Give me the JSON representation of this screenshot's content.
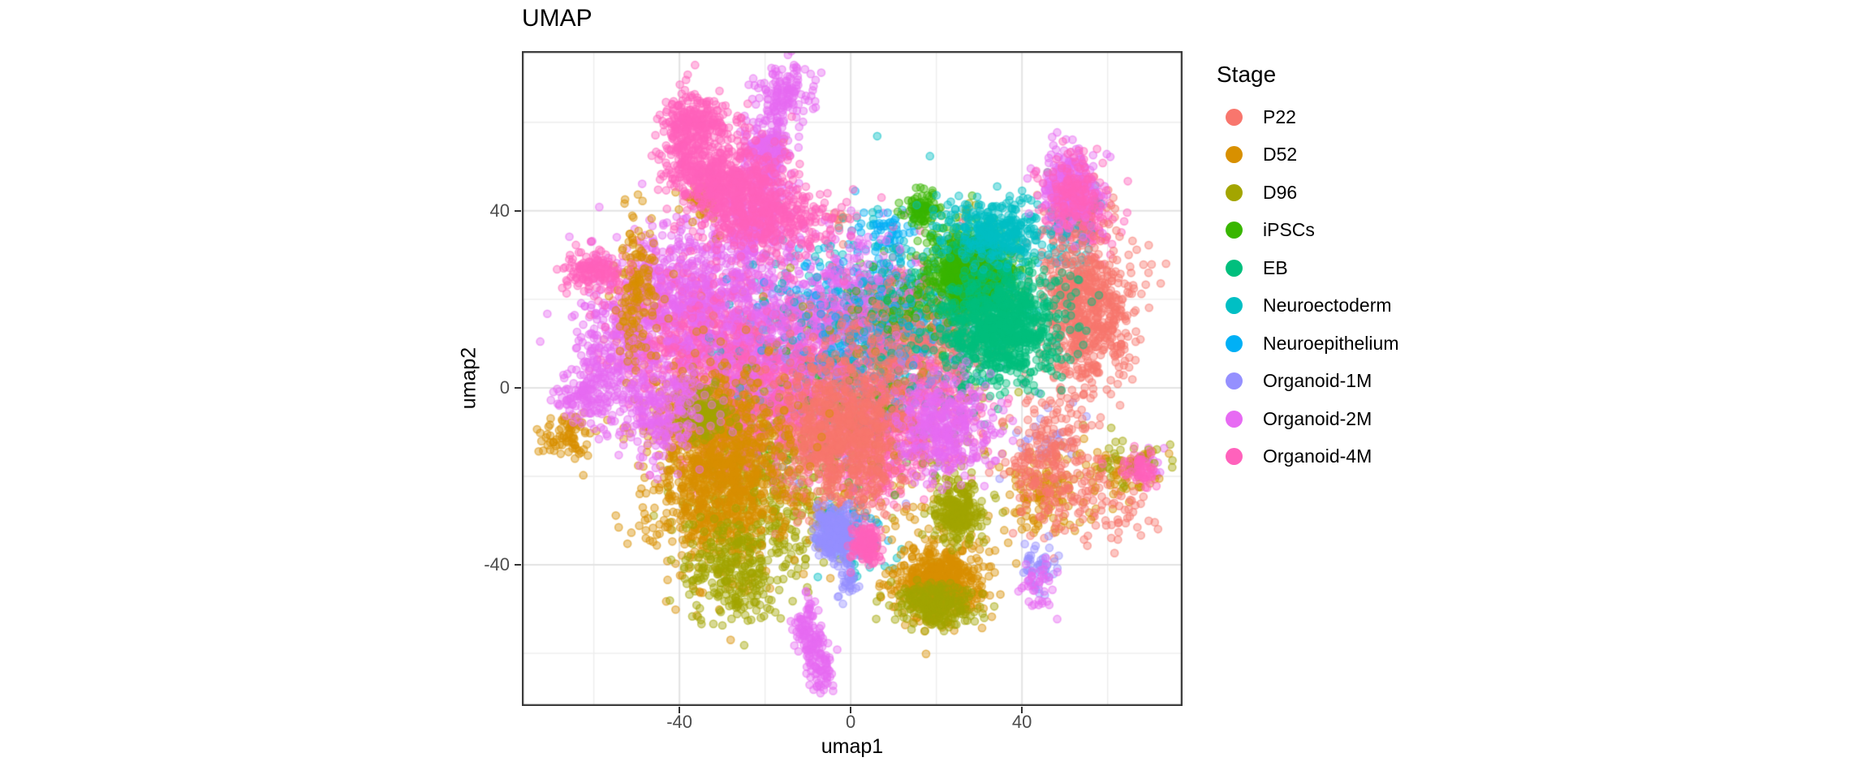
{
  "chart_data": {
    "type": "scatter",
    "title": "UMAP",
    "xlabel": "umap1",
    "ylabel": "umap2",
    "legend_title": "Stage",
    "legend_position": "right",
    "grid": true,
    "xlim": [
      -76.8,
      77.5
    ],
    "ylim": [
      -71.9,
      76.1
    ],
    "xticks": [
      -40,
      0,
      40
    ],
    "yticks": [
      -40,
      0,
      40
    ],
    "minor_grid_step": 20,
    "panel_border_color": "#333333",
    "major_grid_color": "#E3E3E3",
    "minor_grid_color": "#EDEDED",
    "tick_label_color": "#4D4D4D",
    "point_radius": 4.6,
    "point_fill_alpha": 0.42,
    "point_stroke_alpha": 0.55,
    "series": [
      {
        "name": "P22",
        "color": "#F8766D",
        "clusters": [
          [
            -2,
            -10,
            7,
            8.5,
            900,
            1
          ],
          [
            14,
            11,
            10,
            7,
            500,
            0
          ],
          [
            55,
            17,
            5.5,
            8.5,
            700,
            1
          ],
          [
            47,
            -18,
            5.5,
            8,
            260,
            1
          ],
          [
            62,
            -26,
            4,
            5,
            60,
            0
          ],
          [
            53,
            39,
            4,
            4,
            80,
            0
          ],
          [
            -25,
            5,
            12,
            10,
            120,
            0
          ],
          [
            -3,
            38,
            1.5,
            1.5,
            10,
            0
          ]
        ]
      },
      {
        "name": "D52",
        "color": "#D89000",
        "clusters": [
          [
            -31,
            -19,
            8,
            11,
            1100,
            1
          ],
          [
            -66,
            -11,
            3,
            2.5,
            80,
            1
          ],
          [
            -50,
            23,
            2,
            9,
            150,
            1
          ],
          [
            -34.5,
            42,
            2.5,
            2.5,
            60,
            1
          ],
          [
            -18,
            52,
            1.5,
            2,
            25,
            0
          ],
          [
            21,
            -44,
            5.5,
            4.5,
            600,
            1
          ],
          [
            45,
            -24,
            5,
            4.5,
            130,
            0
          ],
          [
            63,
            -19,
            4,
            3,
            50,
            0
          ],
          [
            5,
            -20,
            15,
            10,
            100,
            0
          ]
        ]
      },
      {
        "name": "D96",
        "color": "#A3A500",
        "clusters": [
          [
            -22,
            -25,
            9,
            10,
            450,
            0
          ],
          [
            -33.5,
            -6,
            3,
            3,
            130,
            1
          ],
          [
            -28,
            -42,
            5,
            6,
            250,
            1
          ],
          [
            25,
            -28,
            3,
            3.5,
            250,
            1
          ],
          [
            20,
            -49,
            4.5,
            2.5,
            250,
            1
          ],
          [
            64,
            -17,
            4,
            3,
            40,
            0
          ],
          [
            8,
            0,
            14,
            12,
            120,
            0
          ],
          [
            27,
            40,
            1.5,
            1.5,
            8,
            0
          ]
        ]
      },
      {
        "name": "iPSCs",
        "color": "#39B600",
        "clusters": [
          [
            28,
            26,
            5,
            4.5,
            800,
            1
          ],
          [
            16.5,
            40.5,
            2.2,
            2.2,
            90,
            1
          ],
          [
            12,
            18,
            5,
            5,
            150,
            0
          ],
          [
            0,
            -5,
            12,
            10,
            80,
            0
          ]
        ]
      },
      {
        "name": "EB",
        "color": "#00BF7D",
        "clusters": [
          [
            35,
            14,
            7,
            7,
            1000,
            1
          ],
          [
            10,
            5,
            10,
            8,
            100,
            0
          ]
        ]
      },
      {
        "name": "Neuroectoderm",
        "color": "#00BFC4",
        "clusters": [
          [
            34,
            35,
            6,
            3.5,
            350,
            1
          ],
          [
            51,
            33,
            3,
            7,
            70,
            0
          ],
          [
            5,
            20,
            12,
            10,
            250,
            0
          ],
          [
            -20,
            10,
            8,
            8,
            40,
            0
          ],
          [
            0,
            -38,
            6,
            4,
            25,
            0
          ]
        ]
      },
      {
        "name": "Neuroepithelium",
        "color": "#00B0F6",
        "clusters": [
          [
            3,
            15,
            11,
            9,
            280,
            0
          ],
          [
            9,
            35,
            3,
            2.5,
            50,
            0
          ],
          [
            0,
            -30,
            4,
            3,
            40,
            0
          ],
          [
            30,
            20,
            8,
            6,
            80,
            0
          ]
        ]
      },
      {
        "name": "Organoid-1M",
        "color": "#9590FF",
        "clusters": [
          [
            -3.8,
            -33,
            2.2,
            3,
            280,
            1
          ],
          [
            0,
            -42,
            1.2,
            3,
            40,
            1
          ],
          [
            44,
            -41,
            2,
            3,
            50,
            1
          ],
          [
            5,
            5,
            13,
            11,
            180,
            0
          ],
          [
            45,
            -12,
            4,
            4,
            30,
            0
          ]
        ]
      },
      {
        "name": "Organoid-2M",
        "color": "#E76BF3",
        "clusters": [
          [
            -16,
            66,
            3,
            3.5,
            150,
            1
          ],
          [
            -19.5,
            52,
            3,
            5,
            220,
            1
          ],
          [
            -23,
            37,
            4,
            5,
            250,
            1
          ],
          [
            -40,
            20,
            9,
            9,
            700,
            0
          ],
          [
            -20,
            10,
            9,
            10,
            600,
            0
          ],
          [
            -55,
            8,
            5,
            6,
            200,
            0
          ],
          [
            -62,
            -1.5,
            3,
            3,
            120,
            1
          ],
          [
            -45,
            -5,
            6,
            5,
            250,
            1
          ],
          [
            51,
            46,
            3.5,
            4,
            250,
            1
          ],
          [
            22,
            -9,
            5.5,
            5.5,
            350,
            1
          ],
          [
            0,
            20,
            8,
            8,
            300,
            0
          ],
          [
            -10.5,
            -53,
            1.5,
            2.5,
            60,
            1
          ],
          [
            -8.5,
            -58,
            1.5,
            2.5,
            60,
            1
          ],
          [
            -6.5,
            -64,
            1.5,
            2.5,
            60,
            1
          ],
          [
            43,
            -44,
            2,
            3,
            40,
            1
          ],
          [
            69,
            -17,
            2,
            2,
            15,
            0
          ]
        ]
      },
      {
        "name": "Organoid-4M",
        "color": "#FF62BC",
        "clusters": [
          [
            -38,
            55,
            3,
            6,
            280,
            1
          ],
          [
            -31,
            47,
            3.5,
            4,
            200,
            1
          ],
          [
            -35,
            60,
            4,
            2.5,
            150,
            1
          ],
          [
            -25,
            45,
            6,
            5,
            350,
            1
          ],
          [
            -18,
            38,
            7,
            4,
            300,
            1
          ],
          [
            -60,
            26,
            3.5,
            2.5,
            150,
            1
          ],
          [
            -35,
            12,
            10,
            9,
            600,
            0
          ],
          [
            -15,
            0,
            9,
            9,
            500,
            0
          ],
          [
            -30,
            -8,
            7,
            6,
            300,
            0
          ],
          [
            15,
            -5,
            8,
            7,
            350,
            0
          ],
          [
            5,
            -15,
            6,
            6,
            250,
            0
          ],
          [
            4,
            -35,
            1.8,
            2.2,
            130,
            1
          ],
          [
            68,
            -18.5,
            2,
            2,
            60,
            1
          ],
          [
            52,
            44,
            3.5,
            4,
            150,
            1
          ],
          [
            54,
            38,
            4,
            3.5,
            150,
            0
          ],
          [
            0,
            10,
            15,
            12,
            200,
            0
          ]
        ]
      }
    ]
  },
  "layout_note": "UMAP embedding scatter plot of single cells colored by developmental stage; legend titled Stage on the right."
}
